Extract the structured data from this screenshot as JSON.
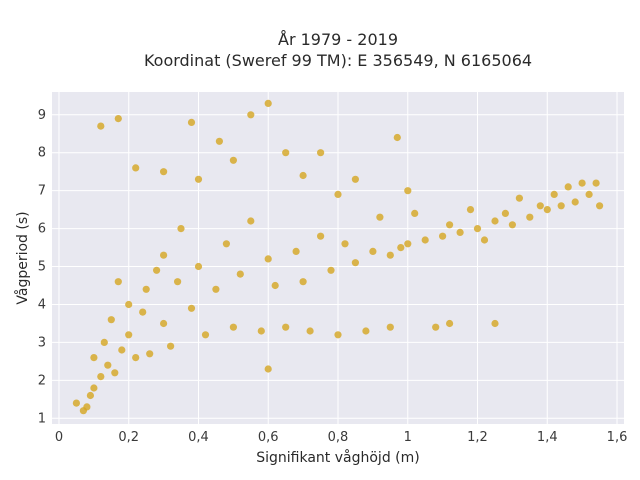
{
  "chart_data": {
    "type": "scatter",
    "title_line1": "År 1979 - 2019",
    "title_line2": "Koordinat (Sweref 99 TM): E 356549, N 6165064",
    "xlabel": "Signifikant våghöjd (m)",
    "ylabel": "Vågperiod (s)",
    "xlim": [
      -0.02,
      1.62
    ],
    "ylim": [
      0.85,
      9.6
    ],
    "x_ticks": [
      0,
      0.2,
      0.4,
      0.6,
      0.8,
      1,
      1.2,
      1.4,
      1.6
    ],
    "x_tick_labels": [
      "0",
      "0,2",
      "0,4",
      "0,6",
      "0,8",
      "1",
      "1,2",
      "1,4",
      "1,6"
    ],
    "y_ticks": [
      1,
      2,
      3,
      4,
      5,
      6,
      7,
      8,
      9
    ],
    "y_tick_labels": [
      "1",
      "2",
      "3",
      "4",
      "5",
      "6",
      "7",
      "8",
      "9"
    ],
    "grid": true,
    "marker_color": "#d4a520",
    "plot_background": "#e8e8f0",
    "points": [
      [
        0.05,
        1.4
      ],
      [
        0.07,
        1.2
      ],
      [
        0.08,
        1.3
      ],
      [
        0.09,
        1.6
      ],
      [
        0.1,
        1.8
      ],
      [
        0.1,
        2.6
      ],
      [
        0.12,
        2.1
      ],
      [
        0.13,
        3.0
      ],
      [
        0.14,
        2.4
      ],
      [
        0.15,
        3.6
      ],
      [
        0.16,
        2.2
      ],
      [
        0.17,
        4.6
      ],
      [
        0.18,
        2.8
      ],
      [
        0.2,
        3.2
      ],
      [
        0.2,
        4.0
      ],
      [
        0.22,
        2.6
      ],
      [
        0.24,
        3.8
      ],
      [
        0.25,
        4.4
      ],
      [
        0.26,
        2.7
      ],
      [
        0.28,
        4.9
      ],
      [
        0.3,
        3.5
      ],
      [
        0.3,
        5.3
      ],
      [
        0.32,
        2.9
      ],
      [
        0.34,
        4.6
      ],
      [
        0.35,
        6.0
      ],
      [
        0.38,
        3.9
      ],
      [
        0.4,
        5.0
      ],
      [
        0.42,
        3.2
      ],
      [
        0.45,
        4.4
      ],
      [
        0.48,
        5.6
      ],
      [
        0.5,
        3.4
      ],
      [
        0.52,
        4.8
      ],
      [
        0.55,
        6.2
      ],
      [
        0.58,
        3.3
      ],
      [
        0.6,
        5.2
      ],
      [
        0.62,
        4.5
      ],
      [
        0.65,
        3.4
      ],
      [
        0.68,
        5.4
      ],
      [
        0.7,
        4.6
      ],
      [
        0.72,
        3.3
      ],
      [
        0.75,
        5.8
      ],
      [
        0.78,
        4.9
      ],
      [
        0.8,
        3.2
      ],
      [
        0.82,
        5.6
      ],
      [
        0.85,
        5.1
      ],
      [
        0.88,
        3.3
      ],
      [
        0.9,
        5.4
      ],
      [
        0.92,
        6.3
      ],
      [
        0.95,
        5.3
      ],
      [
        0.98,
        5.5
      ],
      [
        1.0,
        5.6
      ],
      [
        1.02,
        6.4
      ],
      [
        1.05,
        5.7
      ],
      [
        1.08,
        3.4
      ],
      [
        1.1,
        5.8
      ],
      [
        1.12,
        6.1
      ],
      [
        1.15,
        5.9
      ],
      [
        1.18,
        6.5
      ],
      [
        1.2,
        6.0
      ],
      [
        1.22,
        5.7
      ],
      [
        1.25,
        6.2
      ],
      [
        1.28,
        6.4
      ],
      [
        1.3,
        6.1
      ],
      [
        1.32,
        6.8
      ],
      [
        1.35,
        6.3
      ],
      [
        1.38,
        6.6
      ],
      [
        1.4,
        6.5
      ],
      [
        1.42,
        6.9
      ],
      [
        1.44,
        6.6
      ],
      [
        1.46,
        7.1
      ],
      [
        1.48,
        6.7
      ],
      [
        1.5,
        7.2
      ],
      [
        1.52,
        6.9
      ],
      [
        1.54,
        7.2
      ],
      [
        1.55,
        6.6
      ],
      [
        0.12,
        8.7
      ],
      [
        0.17,
        8.9
      ],
      [
        0.22,
        7.6
      ],
      [
        0.3,
        7.5
      ],
      [
        0.38,
        8.8
      ],
      [
        0.46,
        8.3
      ],
      [
        0.55,
        9.0
      ],
      [
        0.6,
        9.3
      ],
      [
        0.65,
        8.0
      ],
      [
        0.75,
        8.0
      ],
      [
        0.85,
        7.3
      ],
      [
        0.97,
        8.4
      ],
      [
        1.0,
        7.0
      ],
      [
        0.4,
        7.3
      ],
      [
        0.5,
        7.8
      ],
      [
        0.7,
        7.4
      ],
      [
        0.8,
        6.9
      ],
      [
        1.12,
        3.5
      ],
      [
        1.25,
        3.5
      ],
      [
        0.95,
        3.4
      ],
      [
        0.6,
        2.3
      ]
    ]
  }
}
